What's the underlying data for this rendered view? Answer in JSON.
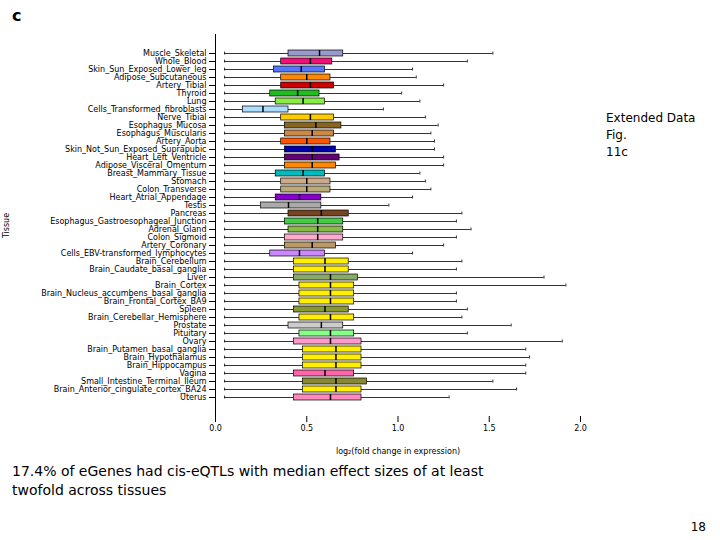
{
  "chart_data": {
    "type": "box",
    "orientation": "horizontal",
    "title": "c",
    "x_label": "log₂(fold change in expression)",
    "y_label": "Tissue",
    "xlim": [
      0.0,
      2.0
    ],
    "xticks": [
      {
        "value": 0.0,
        "label": "0.0"
      },
      0.5,
      {
        "value": 1.0,
        "label": "1.0"
      },
      1.5,
      {
        "value": 2.0,
        "label": "2.0"
      }
    ],
    "grid": false,
    "annotations": [
      "Extended Data Fig.\n11c"
    ],
    "caption": "17.4% of eGenes had cis-eQTLs with median effect sizes of at least\ntwofold across tissues",
    "page_number": "18",
    "categories": [
      "Muscle_Skeletal",
      "Whole_Blood",
      "Skin_Sun_Exposed_Lower_leg",
      "Adipose_Subcutaneous",
      "Artery_Tibial",
      "Thyroid",
      "Lung",
      "Cells_Transformed_fibroblasts",
      "Nerve_Tibial",
      "Esophagus_Mucosa",
      "Esophagus_Muscularis",
      "Artery_Aorta",
      "Skin_Not_Sun_Exposed_Suprapubic",
      "Heart_Left_Ventricle",
      "Adipose_Visceral_Omentum",
      "Breast_Mammary_Tissue",
      "Stomach",
      "Colon_Transverse",
      "Heart_Atrial_Appendage",
      "Testis",
      "Pancreas",
      "Esophagus_Gastroesophageal_Junction",
      "Adrenal_Gland",
      "Colon_Sigmoid",
      "Artery_Coronary",
      "Cells_EBV-transformed_lymphocytes",
      "Brain_Cerebellum",
      "Brain_Caudate_basal_ganglia",
      "Liver",
      "Brain_Cortex",
      "Brain_Nucleus_accumbens_basal_ganglia",
      "Brain_Frontal_Cortex_BA9",
      "Spleen",
      "Brain_Cerebellar_Hemisphere",
      "Prostate",
      "Pituitary",
      "Ovary",
      "Brain_Putamen_basal_ganglia",
      "Brain_Hypothalamus",
      "Brain_Hippocampus",
      "Vagina",
      "Small_Intestine_Terminal_Ileum",
      "Brain_Anterior_cingulate_cortex_BA24",
      "Uterus"
    ],
    "colors": [
      "#9999cc",
      "#ee1177",
      "#5577ff",
      "#ff8800",
      "#cc0000",
      "#22bb22",
      "#88ee44",
      "#aaddff",
      "#ffcc00",
      "#886622",
      "#cc8844",
      "#ff5500",
      "#0000aa",
      "#660077",
      "#ff8800",
      "#00bbbb",
      "#ccaa88",
      "#bbaa77",
      "#8800cc",
      "#aaaaaa",
      "#774422",
      "#44cc44",
      "#88bb44",
      "#ffaacc",
      "#bb9966",
      "#cc88ff",
      "#ffee00",
      "#ffee00",
      "#88aa66",
      "#ffee00",
      "#ffee00",
      "#ffee00",
      "#889933",
      "#ffee00",
      "#cccccc",
      "#88ff88",
      "#ff99cc",
      "#ffee00",
      "#ffee00",
      "#ffee00",
      "#ff66aa",
      "#888833",
      "#ffee00",
      "#ff88bb"
    ],
    "q1": [
      0.4,
      0.36,
      0.32,
      0.36,
      0.36,
      0.3,
      0.33,
      0.15,
      0.36,
      0.38,
      0.38,
      0.36,
      0.38,
      0.38,
      0.38,
      0.33,
      0.36,
      0.36,
      0.33,
      0.25,
      0.4,
      0.38,
      0.4,
      0.38,
      0.38,
      0.3,
      0.43,
      0.43,
      0.43,
      0.46,
      0.46,
      0.46,
      0.43,
      0.46,
      0.4,
      0.46,
      0.43,
      0.48,
      0.48,
      0.48,
      0.43,
      0.48,
      0.48,
      0.43
    ],
    "median": [
      0.57,
      0.52,
      0.47,
      0.5,
      0.52,
      0.45,
      0.48,
      0.26,
      0.52,
      0.55,
      0.53,
      0.5,
      0.53,
      0.53,
      0.53,
      0.48,
      0.5,
      0.5,
      0.46,
      0.4,
      0.58,
      0.56,
      0.56,
      0.56,
      0.53,
      0.46,
      0.6,
      0.6,
      0.63,
      0.63,
      0.63,
      0.63,
      0.6,
      0.63,
      0.58,
      0.63,
      0.63,
      0.66,
      0.66,
      0.66,
      0.6,
      0.66,
      0.66,
      0.63
    ],
    "q3": [
      0.7,
      0.64,
      0.6,
      0.63,
      0.65,
      0.57,
      0.6,
      0.4,
      0.65,
      0.69,
      0.65,
      0.63,
      0.66,
      0.68,
      0.66,
      0.6,
      0.63,
      0.63,
      0.58,
      0.58,
      0.73,
      0.7,
      0.7,
      0.7,
      0.66,
      0.6,
      0.73,
      0.73,
      0.78,
      0.76,
      0.76,
      0.76,
      0.73,
      0.76,
      0.7,
      0.76,
      0.8,
      0.8,
      0.8,
      0.8,
      0.76,
      0.83,
      0.8,
      0.8
    ],
    "whislo": [
      0.05,
      0.05,
      0.05,
      0.05,
      0.05,
      0.05,
      0.05,
      0.05,
      0.05,
      0.05,
      0.05,
      0.05,
      0.05,
      0.05,
      0.05,
      0.05,
      0.05,
      0.05,
      0.05,
      0.05,
      0.05,
      0.05,
      0.05,
      0.05,
      0.05,
      0.05,
      0.05,
      0.05,
      0.05,
      0.05,
      0.05,
      0.05,
      0.05,
      0.05,
      0.05,
      0.05,
      0.05,
      0.05,
      0.05,
      0.05,
      0.05,
      0.05,
      0.05,
      0.05
    ],
    "whishi": [
      1.52,
      1.38,
      1.08,
      1.1,
      1.25,
      1.02,
      1.12,
      0.92,
      1.15,
      1.22,
      1.18,
      1.2,
      1.2,
      1.25,
      1.25,
      1.12,
      1.15,
      1.18,
      1.08,
      0.95,
      1.35,
      1.32,
      1.4,
      1.32,
      1.25,
      1.08,
      1.35,
      1.32,
      1.8,
      1.92,
      1.32,
      1.32,
      1.38,
      1.35,
      1.62,
      1.38,
      1.9,
      1.7,
      1.72,
      1.7,
      1.7,
      1.52,
      1.65,
      1.28
    ]
  }
}
